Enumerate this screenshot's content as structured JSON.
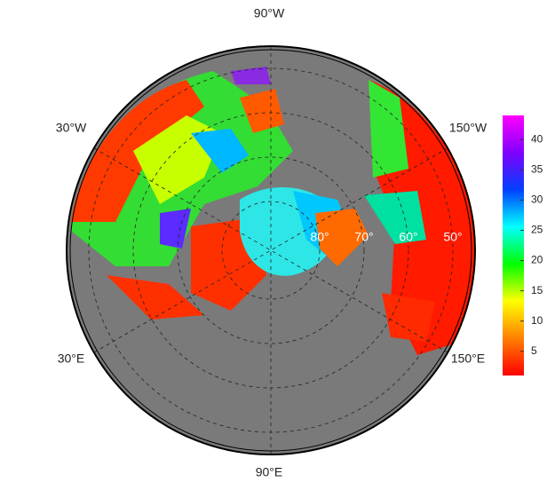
{
  "map": {
    "lon_labels": [
      "90°W",
      "30°W",
      "150°W",
      "30°E",
      "150°E",
      "90°E"
    ],
    "lat_labels": [
      "80°",
      "70°",
      "60°",
      "50°"
    ],
    "colorbar": {
      "lim": [
        1,
        44
      ],
      "ticks": [
        5,
        10,
        15,
        20,
        25,
        30,
        35,
        40
      ],
      "colors": [
        "#ff0000",
        "#ff8000",
        "#ffff00",
        "#00ff00",
        "#00ffff",
        "#0040ff",
        "#8000ff",
        "#ff00ff"
      ]
    }
  }
}
